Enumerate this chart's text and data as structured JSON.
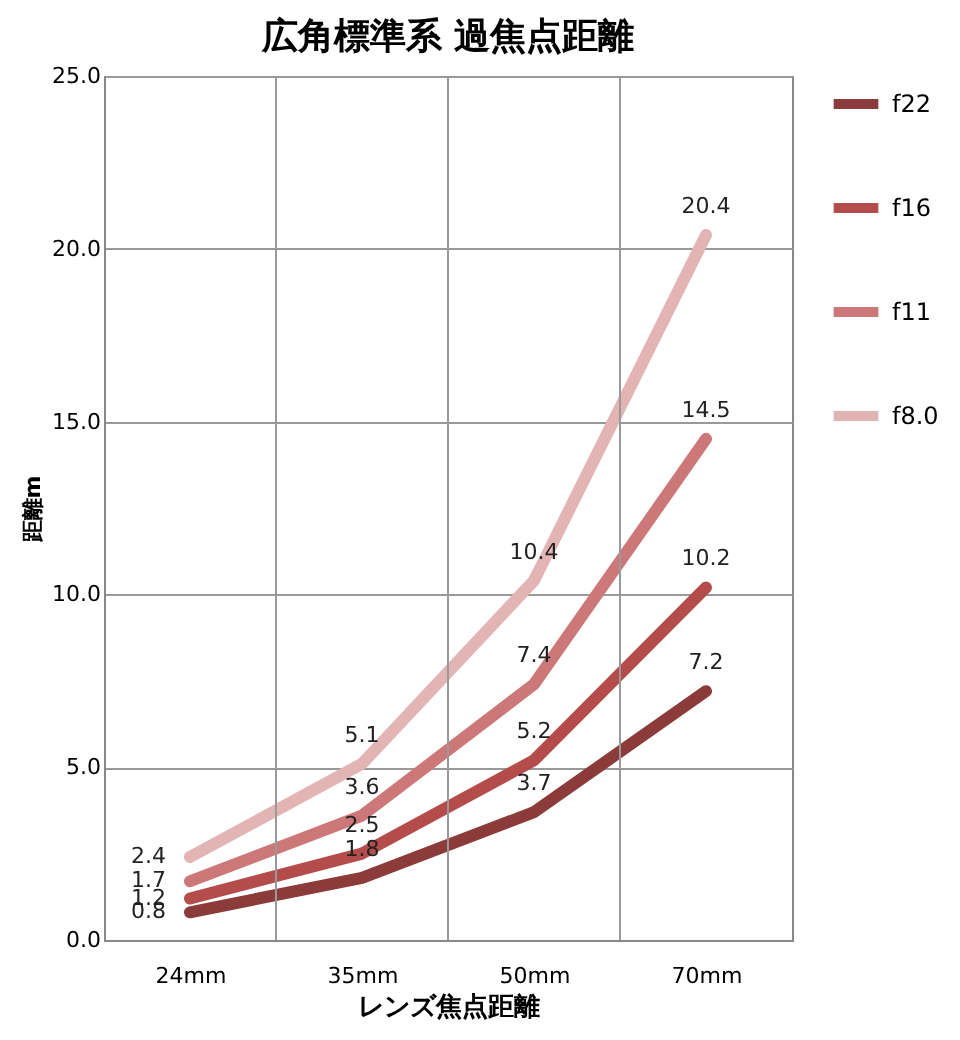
{
  "chart_data": {
    "type": "line",
    "title": "広角標準系  過焦点距離",
    "xlabel": "レンズ焦点距離",
    "ylabel": "距離m",
    "categories": [
      "24mm",
      "35mm",
      "50mm",
      "70mm"
    ],
    "series": [
      {
        "name": "f22",
        "color": "#8c3b3b",
        "values": [
          0.8,
          1.8,
          3.7,
          7.2
        ]
      },
      {
        "name": "f16",
        "color": "#b44c4c",
        "values": [
          1.2,
          2.5,
          5.2,
          10.2
        ]
      },
      {
        "name": "f11",
        "color": "#cd7878",
        "values": [
          1.7,
          3.6,
          7.4,
          14.5
        ]
      },
      {
        "name": "f8.0",
        "color": "#e2b4b4",
        "values": [
          2.4,
          5.1,
          10.4,
          20.4
        ]
      }
    ],
    "ylim": [
      0,
      25
    ],
    "yticks": [
      {
        "value": 0,
        "label": "0.0"
      },
      {
        "value": 5,
        "label": "5.0"
      },
      {
        "value": 10,
        "label": "10.0"
      },
      {
        "value": 15,
        "label": "15.0"
      },
      {
        "value": 20,
        "label": "20.0"
      },
      {
        "value": 25,
        "label": "25.0"
      }
    ],
    "grid": true,
    "legend": "right",
    "data_labels": true,
    "marker": "none",
    "line_style": "solid"
  }
}
